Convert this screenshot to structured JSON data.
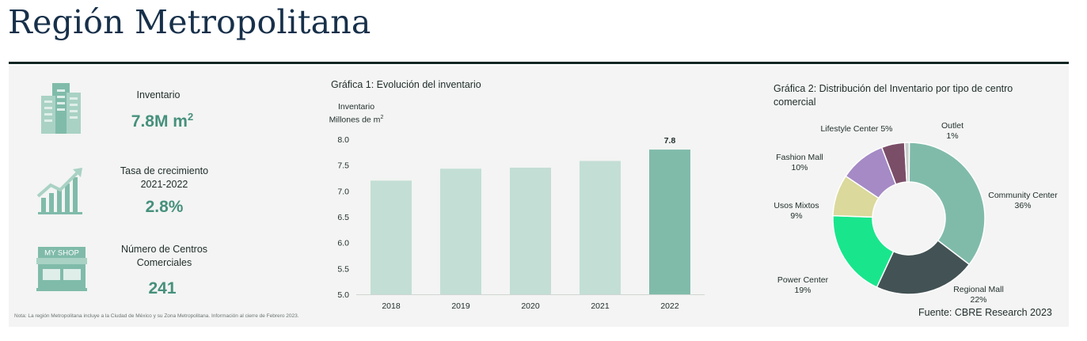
{
  "page": {
    "title": "Región Metropolitana",
    "note": "Nota: La región Metropolitana incluye a la Ciudad de México y su Zona Metropolitana. Información al cierre de  Febrero 2023.",
    "source": "Fuente: CBRE Research 2023"
  },
  "kpis": {
    "inventory": {
      "label": "Inventario",
      "value": "7.8M m",
      "unit_sup": "2",
      "icon": "buildings-icon"
    },
    "growth": {
      "label_line1": "Tasa de crecimiento",
      "label_line2": "2021-2022",
      "value": "2.8%",
      "icon": "growth-chart-icon"
    },
    "centers": {
      "label_line1": "Número de Centros",
      "label_line2": "Comerciales",
      "value": "241",
      "icon": "shop-icon",
      "icon_text": "MY SHOP"
    }
  },
  "colors": {
    "accent": "#46907c",
    "bar_light": "#c3ded5",
    "bar_highlight": "#80bbaa",
    "title": "#17304a",
    "rule": "#0f2622",
    "panel": "#f3f4f3"
  },
  "chart_data": [
    {
      "type": "bar",
      "title": "Gráfica 1: Evolución del inventario",
      "ylabel_line1": "Inventario",
      "ylabel_line2": "Millones de m",
      "ylabel_sup": "2",
      "categories": [
        "2018",
        "2019",
        "2020",
        "2021",
        "2022"
      ],
      "values": [
        7.2,
        7.43,
        7.45,
        7.58,
        7.8
      ],
      "data_labels": [
        "",
        "",
        "",
        "",
        "7.8"
      ],
      "highlight_index": 4,
      "ylim": [
        5.0,
        8.0
      ],
      "yticks": [
        "8.0",
        "7.5",
        "7.0",
        "6.5",
        "6.0",
        "5.5",
        "5.0"
      ],
      "grid": false
    },
    {
      "type": "pie",
      "title_line1": "Gráfica 2: Distribución del Inventario por tipo de centro",
      "title_line2": "comercial",
      "donut": true,
      "slices": [
        {
          "name": "Community Center",
          "pct_label": "36%",
          "value": 36,
          "color": "#80bbaa"
        },
        {
          "name": "Regional Mall",
          "pct_label": "22%",
          "value": 22,
          "color": "#435254"
        },
        {
          "name": "Power Center",
          "pct_label": "19%",
          "value": 19,
          "color": "#19e68c"
        },
        {
          "name": "Usos Mixtos",
          "pct_label": "9%",
          "value": 9,
          "color": "#dbd99b"
        },
        {
          "name": "Fashion Mall",
          "pct_label": "10%",
          "value": 10,
          "color": "#a58ac5"
        },
        {
          "name": "Lifestyle Center",
          "pct_label": "5%",
          "value": 5,
          "color": "#7b4e68"
        },
        {
          "name": "Outlet",
          "pct_label": "1%",
          "value": 1,
          "color": "#c8cfcd"
        }
      ]
    }
  ]
}
